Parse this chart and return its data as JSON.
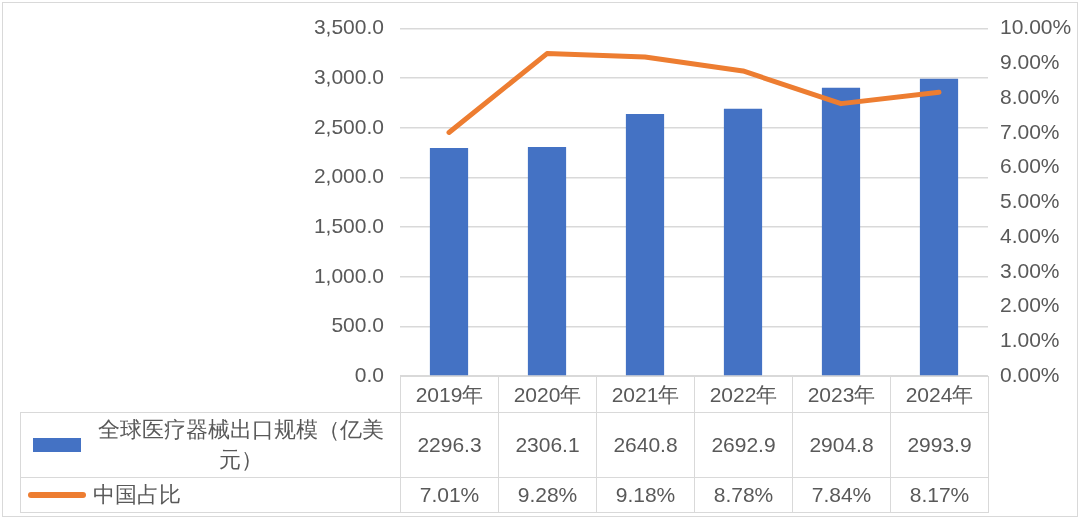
{
  "chart_data": {
    "type": "bar",
    "categories": [
      "2019年",
      "2020年",
      "2021年",
      "2022年",
      "2023年",
      "2024年"
    ],
    "series": [
      {
        "name": "全球医疗器械出口规模（亿美元）",
        "color": "#4472c4",
        "values": [
          2296.3,
          2306.1,
          2640.8,
          2692.9,
          2904.8,
          2993.9
        ],
        "value_labels": [
          "2296.3",
          "2306.1",
          "2640.8",
          "2692.9",
          "2904.8",
          "2993.9"
        ]
      },
      {
        "name": "中国占比",
        "type": "line",
        "axis": "y2",
        "color": "#ed7d31",
        "values": [
          7.01,
          9.28,
          9.18,
          8.78,
          7.84,
          8.17
        ],
        "value_labels": [
          "7.01%",
          "9.28%",
          "9.18%",
          "8.78%",
          "7.84%",
          "8.17%"
        ]
      }
    ],
    "ylim": [
      0,
      3500
    ],
    "yticks": [
      {
        "value": 0,
        "label": "0.0"
      },
      {
        "value": 500,
        "label": "500.0"
      },
      {
        "value": 1000,
        "label": "1,000.0"
      },
      {
        "value": 1500,
        "label": "1,500.0"
      },
      {
        "value": 2000,
        "label": "2,000.0"
      },
      {
        "value": 2500,
        "label": "2,500.0"
      },
      {
        "value": 3000,
        "label": "3,000.0"
      },
      {
        "value": 3500,
        "label": "3,500.0"
      }
    ],
    "y2lim": [
      0,
      10
    ],
    "y2ticks": [
      {
        "value": 0,
        "label": "0.00%"
      },
      {
        "value": 1,
        "label": "1.00%"
      },
      {
        "value": 2,
        "label": "2.00%"
      },
      {
        "value": 3,
        "label": "3.00%"
      },
      {
        "value": 4,
        "label": "4.00%"
      },
      {
        "value": 5,
        "label": "5.00%"
      },
      {
        "value": 6,
        "label": "6.00%"
      },
      {
        "value": 7,
        "label": "7.00%"
      },
      {
        "value": 8,
        "label": "8.00%"
      },
      {
        "value": 9,
        "label": "9.00%"
      },
      {
        "value": 10,
        "label": "10.00%"
      }
    ],
    "grid": "y",
    "legend": "bottom",
    "marker": "none",
    "line_style": "solid"
  }
}
